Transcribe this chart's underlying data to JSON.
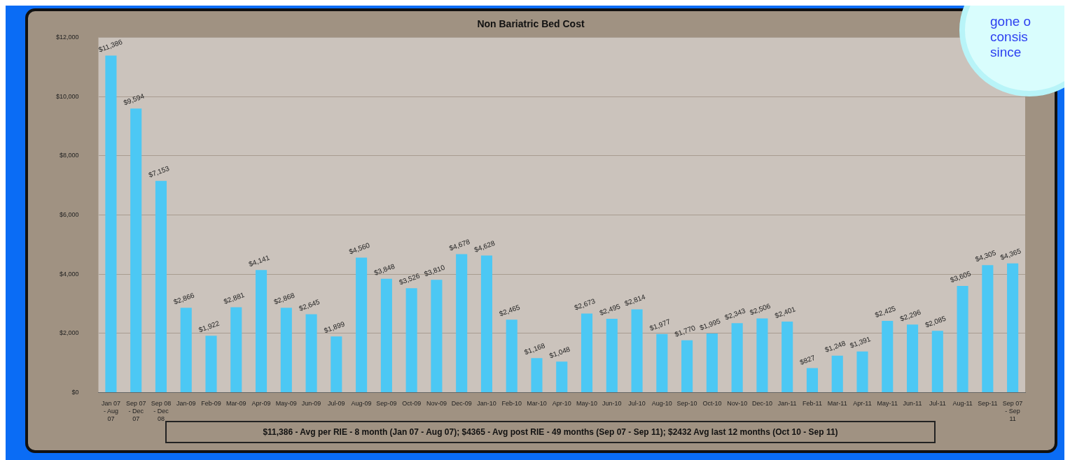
{
  "chart_data": {
    "type": "bar",
    "title": "Non Bariatric Bed Cost",
    "categories": [
      "Jan 07 - Aug 07",
      "Sep 07 - Dec 07",
      "Sep 08 - Dec 08",
      "Jan-09",
      "Feb-09",
      "Mar-09",
      "Apr-09",
      "May-09",
      "Jun-09",
      "Jul-09",
      "Aug-09",
      "Sep-09",
      "Oct-09",
      "Nov-09",
      "Dec-09",
      "Jan-10",
      "Feb-10",
      "Mar-10",
      "Apr-10",
      "May-10",
      "Jun-10",
      "Jul-10",
      "Aug-10",
      "Sep-10",
      "Oct-10",
      "Nov-10",
      "Dec-10",
      "Jan-11",
      "Feb-11",
      "Mar-11",
      "Apr-11",
      "May-11",
      "Jun-11",
      "Jul-11",
      "Aug-11",
      "Sep-11",
      "Sep 07 - Sep 11"
    ],
    "values": [
      11386,
      9594,
      7153,
      2866,
      1922,
      2881,
      4141,
      2868,
      2645,
      1899,
      4560,
      3848,
      3526,
      3810,
      4678,
      4628,
      2465,
      1168,
      1048,
      2673,
      2495,
      2814,
      1977,
      1770,
      1995,
      2343,
      2506,
      2401,
      827,
      1248,
      1391,
      2425,
      2296,
      2085,
      3605,
      4305,
      4365
    ],
    "value_labels": [
      "$11,386",
      "$9,594",
      "$7,153",
      "$2,866",
      "$1,922",
      "$2,881",
      "$4,141",
      "$2,868",
      "$2,645",
      "$1,899",
      "$4,560",
      "$3,848",
      "$3,526",
      "$3,810",
      "$4,678",
      "$4,628",
      "$2,465",
      "$1,168",
      "$1,048",
      "$2,673",
      "$2,495",
      "$2,814",
      "$1,977",
      "$1,770",
      "$1,995",
      "$2,343",
      "$2,506",
      "$2,401",
      "$827",
      "$1,248",
      "$1,391",
      "$2,425",
      "$2,296",
      "$2,085",
      "$3,605",
      "$4,305",
      "$4,365"
    ],
    "color": "#4cc8f4",
    "ylim": [
      0,
      12000
    ],
    "yticks": [
      {
        "value": 0,
        "label": "$0"
      },
      {
        "value": 2000,
        "label": "$2,000"
      },
      {
        "value": 4000,
        "label": "$4,000"
      },
      {
        "value": 6000,
        "label": "$6,000"
      },
      {
        "value": 8000,
        "label": "$8,000"
      },
      {
        "value": 10000,
        "label": "$10,000"
      },
      {
        "value": 12000,
        "label": "$12,000"
      }
    ],
    "grid": "y",
    "legend": false,
    "annotations": [
      "$11,386 - Avg per RIE - 8 month (Jan 07 - Aug 07);  $4365 - Avg post RIE - 49 months (Sep 07 - Sep 11);  $2432 Avg last 12 months (Oct 10 - Sep 11)",
      "gone o",
      "consis",
      "since"
    ]
  }
}
